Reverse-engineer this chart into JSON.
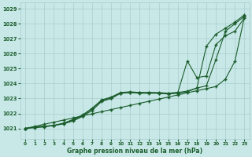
{
  "xlabel": "Graphe pression niveau de la mer (hPa)",
  "xlim": [
    -0.5,
    23.5
  ],
  "ylim": [
    1020.3,
    1029.4
  ],
  "yticks": [
    1021,
    1022,
    1023,
    1024,
    1025,
    1026,
    1027,
    1028,
    1029
  ],
  "xticks": [
    0,
    1,
    2,
    3,
    4,
    5,
    6,
    7,
    8,
    9,
    10,
    11,
    12,
    13,
    14,
    15,
    16,
    17,
    18,
    19,
    20,
    21,
    22,
    23
  ],
  "bg_color": "#c8e8e8",
  "grid_color": "#a8cccc",
  "line_color": "#1a5c2a",
  "line1_straight": [
    1021.0,
    1021.14,
    1021.28,
    1021.42,
    1021.56,
    1021.7,
    1021.84,
    1021.98,
    1022.12,
    1022.26,
    1022.4,
    1022.54,
    1022.68,
    1022.82,
    1022.96,
    1023.1,
    1023.24,
    1023.38,
    1023.52,
    1023.66,
    1023.8,
    1024.3,
    1025.5,
    1028.5
  ],
  "line2": [
    1021.0,
    1021.1,
    1021.15,
    1021.2,
    1021.3,
    1021.5,
    1021.8,
    1022.2,
    1022.8,
    1023.0,
    1023.35,
    1023.4,
    1023.4,
    1023.4,
    1023.35,
    1023.35,
    1023.4,
    1023.5,
    1023.7,
    1023.85,
    1025.6,
    1027.5,
    1028.0,
    1028.5
  ],
  "line3": [
    1021.0,
    1021.1,
    1021.15,
    1021.2,
    1021.35,
    1021.6,
    1021.9,
    1022.35,
    1022.9,
    1023.1,
    1023.4,
    1023.45,
    1023.4,
    1023.4,
    1023.4,
    1023.35,
    1023.4,
    1025.5,
    1024.4,
    1024.5,
    1026.6,
    1027.2,
    1027.5,
    1028.4
  ],
  "line4": [
    1021.0,
    1021.05,
    1021.1,
    1021.2,
    1021.35,
    1021.55,
    1021.85,
    1022.3,
    1022.85,
    1023.05,
    1023.35,
    1023.4,
    1023.35,
    1023.35,
    1023.35,
    1023.3,
    1023.35,
    1023.45,
    1023.7,
    1026.5,
    1027.3,
    1027.7,
    1028.1,
    1028.6
  ]
}
